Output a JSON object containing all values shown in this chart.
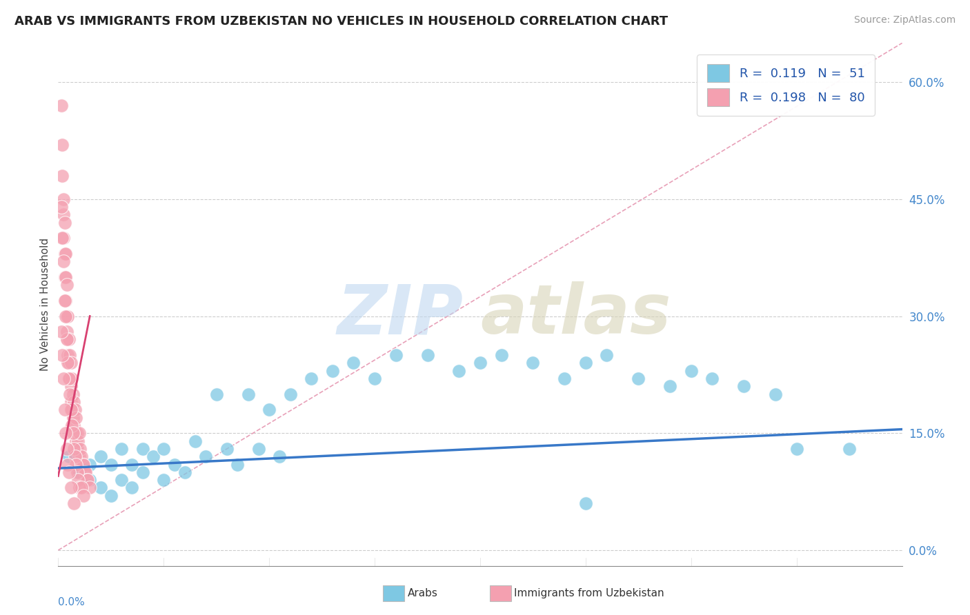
{
  "title": "ARAB VS IMMIGRANTS FROM UZBEKISTAN NO VEHICLES IN HOUSEHOLD CORRELATION CHART",
  "source": "Source: ZipAtlas.com",
  "ylabel": "No Vehicles in Household",
  "ytick_vals": [
    0.0,
    0.15,
    0.3,
    0.45,
    0.6
  ],
  "xrange": [
    0.0,
    0.8
  ],
  "yrange": [
    -0.02,
    0.65
  ],
  "legend_label1": "Arabs",
  "legend_label2": "Immigrants from Uzbekistan",
  "R1": 0.119,
  "N1": 51,
  "R2": 0.198,
  "N2": 80,
  "color1": "#7ec8e3",
  "color2": "#f4a0b0",
  "trend_color1": "#3878c8",
  "trend_color2": "#d84070",
  "trend_color2_dash": "#e8a0b8",
  "scatter1_x": [
    0.01,
    0.02,
    0.03,
    0.03,
    0.04,
    0.04,
    0.05,
    0.05,
    0.06,
    0.06,
    0.07,
    0.07,
    0.08,
    0.08,
    0.09,
    0.1,
    0.1,
    0.11,
    0.12,
    0.13,
    0.14,
    0.15,
    0.16,
    0.17,
    0.18,
    0.19,
    0.2,
    0.21,
    0.22,
    0.24,
    0.26,
    0.28,
    0.3,
    0.32,
    0.35,
    0.38,
    0.4,
    0.42,
    0.45,
    0.48,
    0.5,
    0.52,
    0.55,
    0.58,
    0.6,
    0.62,
    0.65,
    0.68,
    0.7,
    0.75,
    0.5
  ],
  "scatter1_y": [
    0.12,
    0.1,
    0.11,
    0.09,
    0.12,
    0.08,
    0.11,
    0.07,
    0.13,
    0.09,
    0.11,
    0.08,
    0.13,
    0.1,
    0.12,
    0.13,
    0.09,
    0.11,
    0.1,
    0.14,
    0.12,
    0.2,
    0.13,
    0.11,
    0.2,
    0.13,
    0.18,
    0.12,
    0.2,
    0.22,
    0.23,
    0.24,
    0.22,
    0.25,
    0.25,
    0.23,
    0.24,
    0.25,
    0.24,
    0.22,
    0.24,
    0.25,
    0.22,
    0.21,
    0.23,
    0.22,
    0.21,
    0.2,
    0.13,
    0.13,
    0.06
  ],
  "scatter2_x": [
    0.003,
    0.004,
    0.004,
    0.005,
    0.005,
    0.005,
    0.006,
    0.006,
    0.006,
    0.007,
    0.007,
    0.007,
    0.008,
    0.008,
    0.008,
    0.009,
    0.009,
    0.009,
    0.01,
    0.01,
    0.01,
    0.011,
    0.011,
    0.012,
    0.012,
    0.012,
    0.013,
    0.013,
    0.014,
    0.014,
    0.015,
    0.015,
    0.016,
    0.016,
    0.017,
    0.017,
    0.018,
    0.018,
    0.019,
    0.02,
    0.02,
    0.021,
    0.022,
    0.023,
    0.024,
    0.025,
    0.026,
    0.027,
    0.028,
    0.03,
    0.003,
    0.004,
    0.005,
    0.006,
    0.007,
    0.008,
    0.009,
    0.01,
    0.011,
    0.012,
    0.013,
    0.014,
    0.015,
    0.016,
    0.017,
    0.018,
    0.019,
    0.02,
    0.022,
    0.024,
    0.003,
    0.004,
    0.005,
    0.006,
    0.007,
    0.008,
    0.009,
    0.01,
    0.012,
    0.015
  ],
  "scatter2_y": [
    0.57,
    0.52,
    0.48,
    0.45,
    0.43,
    0.4,
    0.42,
    0.38,
    0.35,
    0.38,
    0.35,
    0.32,
    0.34,
    0.3,
    0.28,
    0.3,
    0.27,
    0.25,
    0.27,
    0.24,
    0.22,
    0.25,
    0.22,
    0.24,
    0.21,
    0.19,
    0.22,
    0.18,
    0.2,
    0.17,
    0.19,
    0.16,
    0.18,
    0.15,
    0.17,
    0.14,
    0.15,
    0.13,
    0.14,
    0.15,
    0.12,
    0.13,
    0.12,
    0.11,
    0.11,
    0.1,
    0.1,
    0.09,
    0.09,
    0.08,
    0.44,
    0.4,
    0.37,
    0.32,
    0.3,
    0.27,
    0.24,
    0.22,
    0.2,
    0.18,
    0.16,
    0.15,
    0.13,
    0.12,
    0.11,
    0.1,
    0.09,
    0.08,
    0.08,
    0.07,
    0.28,
    0.25,
    0.22,
    0.18,
    0.15,
    0.13,
    0.11,
    0.1,
    0.08,
    0.06
  ],
  "trend1_x0": 0.0,
  "trend1_x1": 0.8,
  "trend1_y0": 0.105,
  "trend1_y1": 0.155,
  "trend2_solid_x0": 0.0,
  "trend2_solid_x1": 0.03,
  "trend2_solid_y0": 0.095,
  "trend2_solid_y1": 0.3,
  "trend2_dash_x0": 0.0,
  "trend2_dash_x1": 0.8,
  "trend2_dash_y0": 0.0,
  "trend2_dash_y1": 0.65
}
